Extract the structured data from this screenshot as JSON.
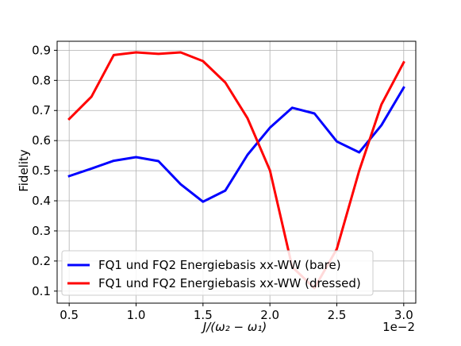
{
  "chart_data": {
    "type": "line",
    "title": "",
    "xlabel": "J/(ω₂ − ω₁)",
    "ylabel": "Fidelity",
    "x_offset_text": "1e−2",
    "xlim": [
      0.41,
      3.09
    ],
    "ylim": [
      0.06,
      0.93
    ],
    "x_ticks": [
      0.5,
      1.0,
      1.5,
      2.0,
      2.5,
      3.0
    ],
    "x_tick_labels": [
      "0.5",
      "1.0",
      "1.5",
      "2.0",
      "2.5",
      "3.0"
    ],
    "y_ticks": [
      0.1,
      0.2,
      0.3,
      0.4,
      0.5,
      0.6,
      0.7,
      0.8,
      0.9
    ],
    "y_tick_labels": [
      "0.1",
      "0.2",
      "0.3",
      "0.4",
      "0.5",
      "0.6",
      "0.7",
      "0.8",
      "0.9"
    ],
    "grid": true,
    "legend_position": "lower-left",
    "x": [
      0.5,
      0.667,
      0.833,
      1.0,
      1.167,
      1.333,
      1.5,
      1.667,
      1.833,
      2.0,
      2.167,
      2.333,
      2.5,
      2.667,
      2.833,
      3.0
    ],
    "series": [
      {
        "name": "FQ1 und FQ2 Energiebasis xx-WW (bare)",
        "color": "#0000ff",
        "values": [
          0.482,
          0.507,
          0.533,
          0.545,
          0.532,
          0.455,
          0.397,
          0.434,
          0.553,
          0.643,
          0.709,
          0.69,
          0.597,
          0.561,
          0.651,
          0.776
        ]
      },
      {
        "name": "FQ1 und FQ2 Energiebasis xx-WW (dressed)",
        "color": "#ff0000",
        "values": [
          0.672,
          0.746,
          0.884,
          0.893,
          0.888,
          0.893,
          0.864,
          0.793,
          0.674,
          0.501,
          0.18,
          0.11,
          0.24,
          0.5,
          0.72,
          0.86
        ]
      }
    ]
  }
}
